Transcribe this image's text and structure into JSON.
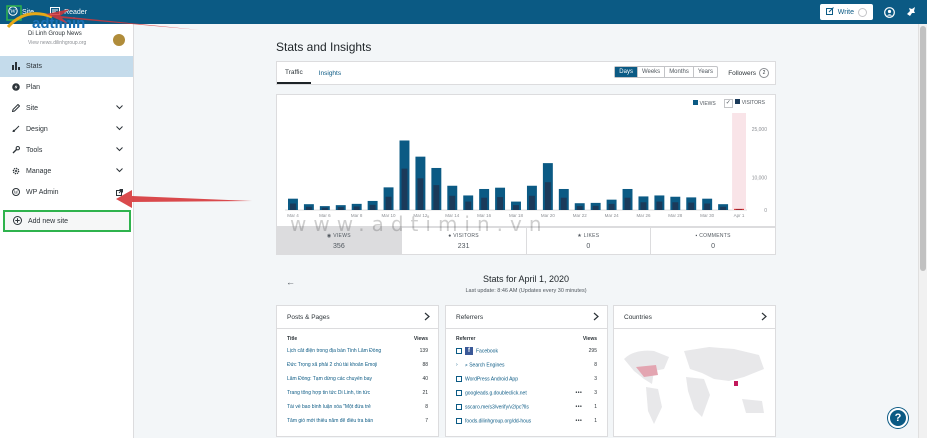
{
  "masterbar": {
    "my_sites": "Site",
    "reader": "Reader",
    "write": "Write"
  },
  "logo_text": "adtimin",
  "site": {
    "name": "Di Linh Group News",
    "url": "View news.dilinhgroup.org"
  },
  "sidebar": {
    "items": [
      {
        "label": "Stats"
      },
      {
        "label": "Plan"
      },
      {
        "label": "Site"
      },
      {
        "label": "Design"
      },
      {
        "label": "Tools"
      },
      {
        "label": "Manage"
      },
      {
        "label": "WP Admin"
      }
    ],
    "add_site": "Add new site"
  },
  "page": {
    "title": "Stats and Insights"
  },
  "tabs": {
    "traffic": "Traffic",
    "insights": "Insights"
  },
  "periods": [
    "Days",
    "Weeks",
    "Months",
    "Years"
  ],
  "followers": {
    "label": "Followers",
    "count": "2"
  },
  "legend": {
    "views": "VIEWS",
    "visitors": "VISITORS"
  },
  "chart_data": {
    "type": "bar",
    "categories": [
      "Mar 4",
      "Mar 5",
      "Mar 6",
      "Mar 7",
      "Mar 8",
      "Mar 9",
      "Mar 10",
      "Mar 11",
      "Mar 12",
      "Mar 13",
      "Mar 14",
      "Mar 15",
      "Mar 16",
      "Mar 17",
      "Mar 18",
      "Mar 19",
      "Mar 20",
      "Mar 21",
      "Mar 22",
      "Mar 23",
      "Mar 24",
      "Mar 25",
      "Mar 26",
      "Mar 27",
      "Mar 28",
      "Mar 29",
      "Mar 30",
      "Mar 31",
      "Apr 1"
    ],
    "tick_labels": [
      "Mar 4",
      "Mar 6",
      "Mar 8",
      "Mar 10",
      "Mar 12",
      "Mar 14",
      "Mar 16",
      "Mar 18",
      "Mar 20",
      "Mar 22",
      "Mar 24",
      "Mar 26",
      "Mar 28",
      "Mar 30",
      "Apr 1"
    ],
    "series": [
      {
        "name": "VIEWS",
        "values": [
          3500,
          1800,
          1200,
          1500,
          1900,
          2800,
          7000,
          21500,
          16500,
          13000,
          7500,
          4500,
          6500,
          6900,
          2600,
          7500,
          14500,
          6500,
          2100,
          2200,
          3200,
          6500,
          4200,
          4500,
          4100,
          3900,
          3500,
          1800,
          356
        ]
      },
      {
        "name": "VISITORS",
        "values": [
          2000,
          1000,
          700,
          900,
          1100,
          1600,
          4100,
          12800,
          9800,
          7700,
          4400,
          2600,
          3800,
          4000,
          1500,
          4400,
          8600,
          3800,
          1200,
          1300,
          1900,
          3800,
          2400,
          2600,
          2400,
          2300,
          2000,
          1000,
          231
        ]
      }
    ],
    "yticks": [
      "25,000",
      "10,000",
      "0"
    ],
    "ylim": [
      0,
      30000
    ]
  },
  "stats": [
    {
      "name": "VIEWS",
      "value": "356"
    },
    {
      "name": "VISITORS",
      "value": "231"
    },
    {
      "name": "LIKES",
      "value": "0"
    },
    {
      "name": "COMMENTS",
      "value": "0"
    }
  ],
  "stats_for": {
    "title": "Stats for April 1, 2020",
    "updated": "Last update: 8:46 AM (Updates every 30 minutes)"
  },
  "posts": {
    "title": "Posts & Pages",
    "col_title": "Title",
    "col_views": "Views",
    "rows": [
      {
        "title": "Lịch cắt điện trong địa bàn Tỉnh Lâm Đồng",
        "views": "139"
      },
      {
        "title": "Đức Trọng xã phải 2 chủ tài khoản Emoji",
        "views": "88"
      },
      {
        "title": "Lâm Đồng: Tạm dừng các chuyến bay",
        "views": "40"
      },
      {
        "title": "Trang tổng hợp tin tức Di Linh, tin tức",
        "views": "21"
      },
      {
        "title": "Tài về bao bình luận xóa \"Một đứa trẻ",
        "views": "8"
      },
      {
        "title": "Tâm giỏ mới thiếu năm để điều tra bán",
        "views": "7"
      }
    ]
  },
  "referrers": {
    "title": "Referrers",
    "col_ref": "Referrer",
    "col_views": "Views",
    "rows": [
      {
        "name": "Facebook",
        "views": "295"
      },
      {
        "name": "Search Engines",
        "views": "8"
      },
      {
        "name": "WordPress Android App",
        "views": "3"
      },
      {
        "name": "googleads.g.doubleclick.net",
        "views": "3"
      },
      {
        "name": "sscaro.me/s3/verify/v2/pc?lls",
        "views": "1"
      },
      {
        "name": "foods.dilinhgroup.org/dd-hous",
        "views": "1"
      }
    ]
  },
  "countries": {
    "title": "Countries"
  },
  "watermark": "www.adtimin.vn",
  "colors": {
    "brand": "#0b5a84",
    "views_bar": "#0b5a84",
    "visitors_bar": "#1b3a5a",
    "highlight": "#2fb34d",
    "arrow": "#d63638"
  }
}
